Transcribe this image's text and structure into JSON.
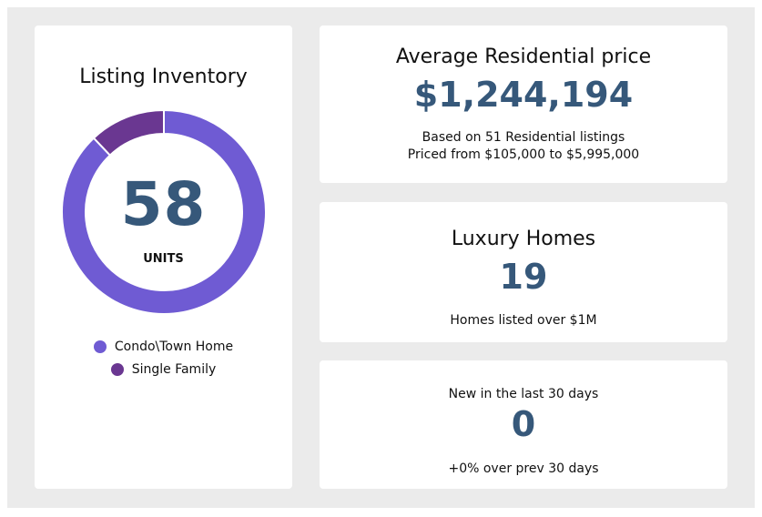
{
  "inventory": {
    "title": "Listing Inventory",
    "total": "58",
    "unit_label": "UNITS",
    "segments": [
      {
        "label": "Condo\\Town Home",
        "value": 51,
        "color": "#6f5bd3"
      },
      {
        "label": "Single Family",
        "value": 7,
        "color": "#6a3791"
      }
    ]
  },
  "avg_price": {
    "title": "Average Residential price",
    "value": "$1,244,194",
    "line1": "Based on 51 Residential listings",
    "line2": "Priced from $105,000 to $5,995,000"
  },
  "luxury": {
    "title": "Luxury Homes",
    "value": "19",
    "subtitle": "Homes listed over $1M"
  },
  "new_listings": {
    "title": "New in the last 30 days",
    "value": "0",
    "subtitle": "+0% over prev 30 days"
  }
}
